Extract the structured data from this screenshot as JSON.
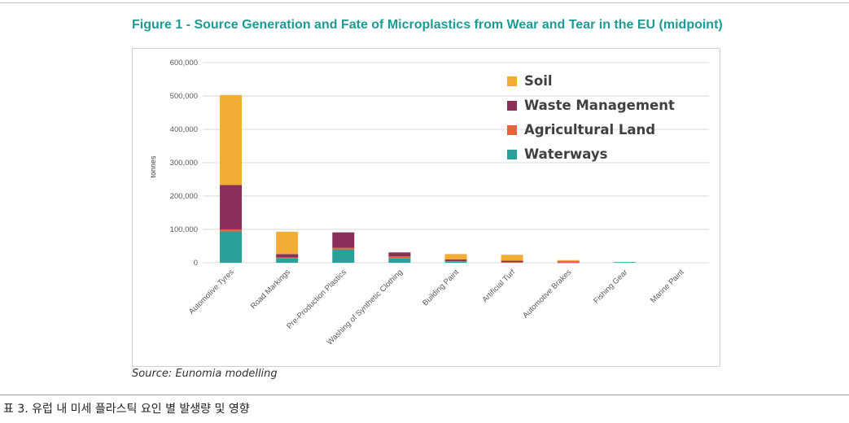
{
  "figure": {
    "title": "Figure 1 - Source Generation and Fate of Microplastics from Wear and Tear in the EU (midpoint)",
    "source": "Source: Eunomia modelling",
    "caption": "표 3. 유럽 내 미세 플라스틱 요인 별 발생량 및 영향"
  },
  "chart_data": {
    "type": "bar",
    "stacked": true,
    "ylabel": "tonnes",
    "xlabel": "",
    "ylim": [
      0,
      600000
    ],
    "yticks": [
      "0",
      "100,000",
      "200,000",
      "300,000",
      "400,000",
      "500,000",
      "600,000"
    ],
    "ytick_values": [
      0,
      100000,
      200000,
      300000,
      400000,
      500000,
      600000
    ],
    "grid": true,
    "legend_position": "top-right",
    "categories": [
      "Automotive Tyres",
      "Road Markings",
      "Pre-Production Plastics",
      "Washing of Synthetic Clothing",
      "Building Paint",
      "Artificial Turf",
      "Automotive Brakes",
      "Fishing Gear",
      "Marine Paint"
    ],
    "series": [
      {
        "name": "Waterways",
        "color": "#2aa198",
        "values": [
          94000,
          14000,
          40000,
          14000,
          3000,
          0,
          1000,
          2000,
          0
        ]
      },
      {
        "name": "Agricultural Land",
        "color": "#e8603c",
        "values": [
          6000,
          2000,
          5000,
          5000,
          2000,
          2000,
          1000,
          0,
          0
        ]
      },
      {
        "name": "Waste Management",
        "color": "#8b2e5a",
        "values": [
          133000,
          10000,
          46000,
          12000,
          5000,
          4000,
          2000,
          0,
          0
        ]
      },
      {
        "name": "Soil",
        "color": "#f2ad35",
        "values": [
          270000,
          67000,
          0,
          0,
          16000,
          18000,
          4000,
          0,
          0
        ]
      }
    ],
    "legend_order": [
      "Soil",
      "Waste Management",
      "Agricultural Land",
      "Waterways"
    ]
  }
}
